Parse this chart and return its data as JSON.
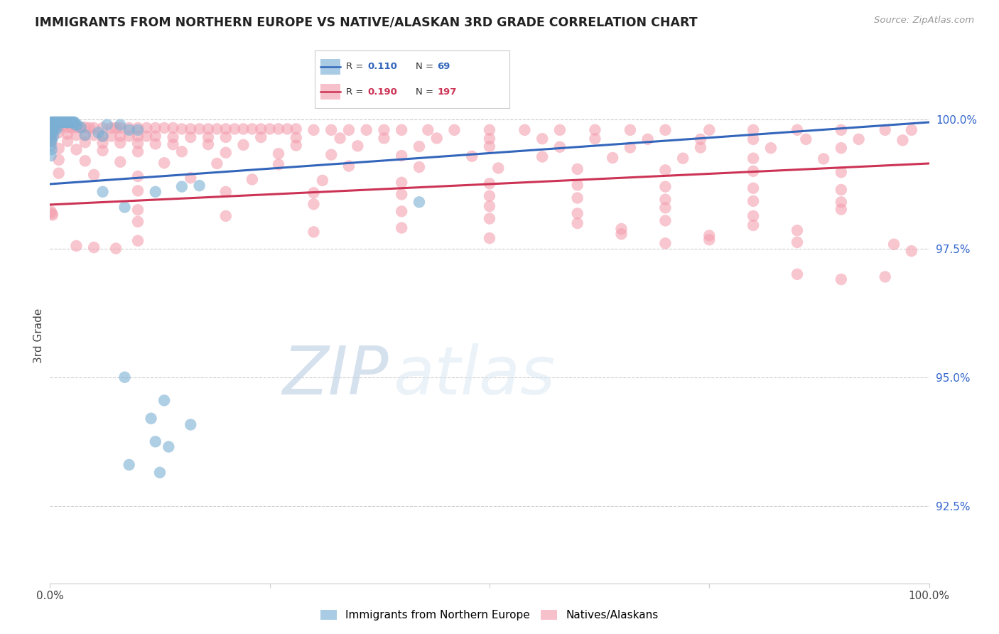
{
  "title": "IMMIGRANTS FROM NORTHERN EUROPE VS NATIVE/ALASKAN 3RD GRADE CORRELATION CHART",
  "source": "Source: ZipAtlas.com",
  "ylabel": "3rd Grade",
  "xlim": [
    0.0,
    1.0
  ],
  "ylim": [
    0.91,
    1.006
  ],
  "blue_R": 0.11,
  "blue_N": 69,
  "pink_R": 0.19,
  "pink_N": 197,
  "blue_color": "#7BAFD4",
  "pink_color": "#F4A0B0",
  "blue_line_color": "#3366BB",
  "pink_line_color": "#CC3355",
  "watermark_zip": "ZIP",
  "watermark_atlas": "atlas",
  "background_color": "#FFFFFF",
  "ytick_vals": [
    0.925,
    0.95,
    0.975,
    1.0
  ],
  "ytick_labels": [
    "92.5%",
    "95.0%",
    "97.5%",
    "100.0%"
  ],
  "blue_line": [
    [
      0.0,
      0.9875
    ],
    [
      1.0,
      0.9995
    ]
  ],
  "pink_line": [
    [
      0.0,
      0.9835
    ],
    [
      1.0,
      0.9915
    ]
  ],
  "blue_scatter": [
    [
      0.001,
      0.9995
    ],
    [
      0.002,
      0.9995
    ],
    [
      0.003,
      0.9995
    ],
    [
      0.004,
      0.9995
    ],
    [
      0.005,
      0.9995
    ],
    [
      0.006,
      0.9995
    ],
    [
      0.007,
      0.9995
    ],
    [
      0.008,
      0.9995
    ],
    [
      0.009,
      0.9995
    ],
    [
      0.01,
      0.9995
    ],
    [
      0.011,
      0.9995
    ],
    [
      0.012,
      0.9995
    ],
    [
      0.013,
      0.9995
    ],
    [
      0.014,
      0.9995
    ],
    [
      0.015,
      0.9995
    ],
    [
      0.016,
      0.9995
    ],
    [
      0.017,
      0.9995
    ],
    [
      0.018,
      0.9995
    ],
    [
      0.019,
      0.9995
    ],
    [
      0.02,
      0.9995
    ],
    [
      0.021,
      0.9995
    ],
    [
      0.022,
      0.9995
    ],
    [
      0.023,
      0.9995
    ],
    [
      0.024,
      0.9995
    ],
    [
      0.025,
      0.9995
    ],
    [
      0.026,
      0.9995
    ],
    [
      0.027,
      0.9995
    ],
    [
      0.028,
      0.9995
    ],
    [
      0.029,
      0.999
    ],
    [
      0.031,
      0.999
    ],
    [
      0.065,
      0.999
    ],
    [
      0.08,
      0.999
    ],
    [
      0.002,
      0.9985
    ],
    [
      0.004,
      0.9982
    ],
    [
      0.006,
      0.9982
    ],
    [
      0.008,
      0.9982
    ],
    [
      0.001,
      0.9978
    ],
    [
      0.003,
      0.9978
    ],
    [
      0.002,
      0.9972
    ],
    [
      0.004,
      0.9968
    ],
    [
      0.001,
      0.9962
    ],
    [
      0.002,
      0.996
    ],
    [
      0.001,
      0.995
    ],
    [
      0.002,
      0.9942
    ],
    [
      0.001,
      0.993
    ],
    [
      0.035,
      0.9985
    ],
    [
      0.055,
      0.9975
    ],
    [
      0.09,
      0.998
    ],
    [
      0.1,
      0.998
    ],
    [
      0.04,
      0.997
    ],
    [
      0.06,
      0.9968
    ],
    [
      0.15,
      0.987
    ],
    [
      0.17,
      0.9872
    ],
    [
      0.06,
      0.986
    ],
    [
      0.12,
      0.986
    ],
    [
      0.085,
      0.983
    ],
    [
      0.42,
      0.984
    ],
    [
      0.085,
      0.95
    ],
    [
      0.13,
      0.9455
    ],
    [
      0.115,
      0.942
    ],
    [
      0.16,
      0.9408
    ],
    [
      0.12,
      0.9375
    ],
    [
      0.135,
      0.9365
    ],
    [
      0.09,
      0.933
    ],
    [
      0.125,
      0.9315
    ]
  ],
  "pink_scatter": [
    [
      0.001,
      0.999
    ],
    [
      0.003,
      0.999
    ],
    [
      0.005,
      0.999
    ],
    [
      0.01,
      0.9988
    ],
    [
      0.015,
      0.9988
    ],
    [
      0.02,
      0.9985
    ],
    [
      0.025,
      0.9985
    ],
    [
      0.03,
      0.9985
    ],
    [
      0.035,
      0.9985
    ],
    [
      0.04,
      0.9985
    ],
    [
      0.045,
      0.9984
    ],
    [
      0.05,
      0.9984
    ],
    [
      0.06,
      0.9984
    ],
    [
      0.07,
      0.9984
    ],
    [
      0.075,
      0.9984
    ],
    [
      0.08,
      0.9984
    ],
    [
      0.09,
      0.9984
    ],
    [
      0.1,
      0.9984
    ],
    [
      0.11,
      0.9984
    ],
    [
      0.12,
      0.9984
    ],
    [
      0.13,
      0.9984
    ],
    [
      0.14,
      0.9984
    ],
    [
      0.15,
      0.9982
    ],
    [
      0.16,
      0.9982
    ],
    [
      0.17,
      0.9982
    ],
    [
      0.18,
      0.9982
    ],
    [
      0.19,
      0.9982
    ],
    [
      0.2,
      0.9982
    ],
    [
      0.21,
      0.9982
    ],
    [
      0.22,
      0.9982
    ],
    [
      0.23,
      0.9982
    ],
    [
      0.24,
      0.9982
    ],
    [
      0.25,
      0.9982
    ],
    [
      0.26,
      0.9982
    ],
    [
      0.27,
      0.9982
    ],
    [
      0.28,
      0.9982
    ],
    [
      0.3,
      0.998
    ],
    [
      0.32,
      0.998
    ],
    [
      0.34,
      0.998
    ],
    [
      0.36,
      0.998
    ],
    [
      0.38,
      0.998
    ],
    [
      0.4,
      0.998
    ],
    [
      0.43,
      0.998
    ],
    [
      0.46,
      0.998
    ],
    [
      0.5,
      0.998
    ],
    [
      0.54,
      0.998
    ],
    [
      0.58,
      0.998
    ],
    [
      0.62,
      0.998
    ],
    [
      0.66,
      0.998
    ],
    [
      0.7,
      0.998
    ],
    [
      0.75,
      0.998
    ],
    [
      0.8,
      0.998
    ],
    [
      0.85,
      0.998
    ],
    [
      0.9,
      0.998
    ],
    [
      0.95,
      0.998
    ],
    [
      0.98,
      0.998
    ],
    [
      0.001,
      0.9975
    ],
    [
      0.002,
      0.9972
    ],
    [
      0.003,
      0.997
    ],
    [
      0.01,
      0.9975
    ],
    [
      0.02,
      0.9972
    ],
    [
      0.03,
      0.997
    ],
    [
      0.04,
      0.997
    ],
    [
      0.05,
      0.997
    ],
    [
      0.06,
      0.9968
    ],
    [
      0.07,
      0.9968
    ],
    [
      0.08,
      0.9968
    ],
    [
      0.09,
      0.9968
    ],
    [
      0.1,
      0.9968
    ],
    [
      0.11,
      0.9968
    ],
    [
      0.12,
      0.9968
    ],
    [
      0.14,
      0.9966
    ],
    [
      0.16,
      0.9966
    ],
    [
      0.18,
      0.9966
    ],
    [
      0.2,
      0.9966
    ],
    [
      0.24,
      0.9966
    ],
    [
      0.28,
      0.9965
    ],
    [
      0.33,
      0.9964
    ],
    [
      0.38,
      0.9964
    ],
    [
      0.44,
      0.9964
    ],
    [
      0.5,
      0.9963
    ],
    [
      0.56,
      0.9963
    ],
    [
      0.62,
      0.9963
    ],
    [
      0.68,
      0.9962
    ],
    [
      0.74,
      0.9962
    ],
    [
      0.8,
      0.9962
    ],
    [
      0.86,
      0.9962
    ],
    [
      0.92,
      0.9962
    ],
    [
      0.97,
      0.996
    ],
    [
      0.001,
      0.996
    ],
    [
      0.002,
      0.9958
    ],
    [
      0.02,
      0.9958
    ],
    [
      0.04,
      0.9956
    ],
    [
      0.06,
      0.9955
    ],
    [
      0.08,
      0.9955
    ],
    [
      0.1,
      0.9954
    ],
    [
      0.12,
      0.9953
    ],
    [
      0.14,
      0.9952
    ],
    [
      0.18,
      0.9952
    ],
    [
      0.22,
      0.9951
    ],
    [
      0.28,
      0.995
    ],
    [
      0.35,
      0.9949
    ],
    [
      0.42,
      0.9948
    ],
    [
      0.5,
      0.9948
    ],
    [
      0.58,
      0.9947
    ],
    [
      0.66,
      0.9946
    ],
    [
      0.74,
      0.9946
    ],
    [
      0.82,
      0.9945
    ],
    [
      0.9,
      0.9945
    ],
    [
      0.01,
      0.9944
    ],
    [
      0.03,
      0.9942
    ],
    [
      0.06,
      0.994
    ],
    [
      0.1,
      0.9938
    ],
    [
      0.15,
      0.9938
    ],
    [
      0.2,
      0.9936
    ],
    [
      0.26,
      0.9934
    ],
    [
      0.32,
      0.9932
    ],
    [
      0.4,
      0.993
    ],
    [
      0.48,
      0.9929
    ],
    [
      0.56,
      0.9928
    ],
    [
      0.64,
      0.9926
    ],
    [
      0.72,
      0.9925
    ],
    [
      0.8,
      0.9925
    ],
    [
      0.88,
      0.9924
    ],
    [
      0.01,
      0.9922
    ],
    [
      0.04,
      0.992
    ],
    [
      0.08,
      0.9918
    ],
    [
      0.13,
      0.9916
    ],
    [
      0.19,
      0.9915
    ],
    [
      0.26,
      0.9913
    ],
    [
      0.34,
      0.991
    ],
    [
      0.42,
      0.9908
    ],
    [
      0.51,
      0.9906
    ],
    [
      0.6,
      0.9904
    ],
    [
      0.7,
      0.9902
    ],
    [
      0.8,
      0.99
    ],
    [
      0.9,
      0.9898
    ],
    [
      0.01,
      0.9896
    ],
    [
      0.05,
      0.9893
    ],
    [
      0.1,
      0.989
    ],
    [
      0.16,
      0.9887
    ],
    [
      0.23,
      0.9884
    ],
    [
      0.31,
      0.9882
    ],
    [
      0.4,
      0.9878
    ],
    [
      0.5,
      0.9876
    ],
    [
      0.6,
      0.9873
    ],
    [
      0.7,
      0.987
    ],
    [
      0.8,
      0.9867
    ],
    [
      0.9,
      0.9864
    ],
    [
      0.1,
      0.9862
    ],
    [
      0.2,
      0.986
    ],
    [
      0.3,
      0.9858
    ],
    [
      0.4,
      0.9855
    ],
    [
      0.5,
      0.9852
    ],
    [
      0.6,
      0.9848
    ],
    [
      0.7,
      0.9845
    ],
    [
      0.8,
      0.9842
    ],
    [
      0.9,
      0.984
    ],
    [
      0.3,
      0.9836
    ],
    [
      0.5,
      0.9832
    ],
    [
      0.7,
      0.9829
    ],
    [
      0.9,
      0.9826
    ],
    [
      0.1,
      0.9825
    ],
    [
      0.001,
      0.9822
    ],
    [
      0.002,
      0.9818
    ],
    [
      0.003,
      0.9815
    ],
    [
      0.4,
      0.9822
    ],
    [
      0.6,
      0.9818
    ],
    [
      0.8,
      0.9813
    ],
    [
      0.2,
      0.9813
    ],
    [
      0.5,
      0.9808
    ],
    [
      0.7,
      0.9804
    ],
    [
      0.1,
      0.9802
    ],
    [
      0.6,
      0.9799
    ],
    [
      0.8,
      0.9795
    ],
    [
      0.4,
      0.979
    ],
    [
      0.65,
      0.9788
    ],
    [
      0.85,
      0.9785
    ],
    [
      0.3,
      0.9782
    ],
    [
      0.65,
      0.9778
    ],
    [
      0.75,
      0.9775
    ],
    [
      0.5,
      0.977
    ],
    [
      0.75,
      0.9767
    ],
    [
      0.1,
      0.9765
    ],
    [
      0.85,
      0.9762
    ],
    [
      0.7,
      0.976
    ],
    [
      0.96,
      0.9758
    ],
    [
      0.03,
      0.9755
    ],
    [
      0.05,
      0.9752
    ],
    [
      0.075,
      0.975
    ],
    [
      0.98,
      0.9745
    ],
    [
      0.85,
      0.97
    ],
    [
      0.9,
      0.969
    ],
    [
      0.95,
      0.9695
    ]
  ]
}
